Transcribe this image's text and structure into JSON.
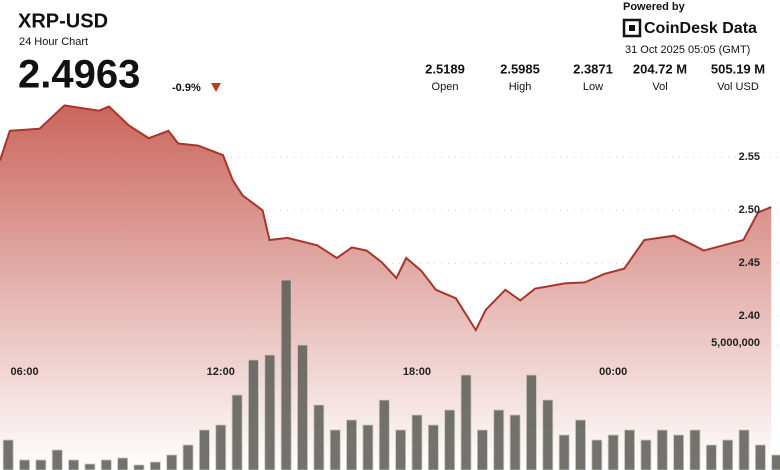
{
  "header": {
    "symbol": "XRP-USD",
    "subtitle": "24 Hour Chart",
    "price": "2.4963",
    "change": "-0.9%",
    "powered_by": "Powered by",
    "brand": "CoinDesk Data",
    "timestamp": "31 Oct 2025 05:05 (GMT)",
    "stats": [
      {
        "value": "2.5189",
        "label": "Open"
      },
      {
        "value": "2.5985",
        "label": "High"
      },
      {
        "value": "2.3871",
        "label": "Low"
      },
      {
        "value": "204.72 M",
        "label": "Vol"
      },
      {
        "value": "505.19 M",
        "label": "Vol USD"
      }
    ]
  },
  "chart_data": {
    "type": "line",
    "xlim": [
      5.25,
      29.1
    ],
    "xticks": [
      {
        "value": 6,
        "label": "06:00"
      },
      {
        "value": 12,
        "label": "12:00"
      },
      {
        "value": 18,
        "label": "18:00"
      },
      {
        "value": 24,
        "label": "00:00"
      }
    ],
    "ylim": [
      2.255,
      2.605
    ],
    "yticks": [
      {
        "value": 2.4,
        "label": "2.40"
      },
      {
        "value": 2.45,
        "label": "2.45"
      },
      {
        "value": 2.5,
        "label": "2.50"
      },
      {
        "value": 2.55,
        "label": "2.55"
      }
    ],
    "y2lim": [
      0,
      9400000
    ],
    "y2ticks": [
      {
        "value": 5000000,
        "label": "5,000,000"
      }
    ],
    "grid": true,
    "series": [
      {
        "type": "line",
        "color": "#a8352c",
        "x": [
          5.25,
          5.55,
          6.46,
          7.22,
          8.28,
          8.58,
          9.19,
          9.8,
          10.4,
          10.7,
          11.31,
          12.07,
          12.37,
          12.67,
          13.28,
          13.49,
          14.04,
          14.95,
          15.55,
          16.01,
          16.46,
          16.92,
          17.37,
          17.67,
          18.13,
          18.58,
          19.19,
          19.8,
          20.1,
          20.7,
          21.16,
          21.61,
          22.52,
          23.13,
          23.73,
          24.34,
          24.95,
          25.86,
          26.46,
          26.77,
          27.37,
          27.98,
          28.43,
          28.83
        ],
        "values": [
          2.547,
          2.575,
          2.577,
          2.599,
          2.594,
          2.598,
          2.58,
          2.568,
          2.575,
          2.563,
          2.561,
          2.552,
          2.528,
          2.514,
          2.5,
          2.472,
          2.474,
          2.467,
          2.455,
          2.465,
          2.462,
          2.451,
          2.436,
          2.455,
          2.443,
          2.425,
          2.417,
          2.387,
          2.406,
          2.425,
          2.415,
          2.426,
          2.431,
          2.432,
          2.44,
          2.445,
          2.472,
          2.476,
          2.467,
          2.462,
          2.467,
          2.472,
          2.498,
          2.503
        ]
      },
      {
        "type": "bar",
        "axis": "y2",
        "color": "#5a5a55",
        "x": [
          5.5,
          6,
          6.5,
          7,
          7.5,
          8,
          8.5,
          9,
          9.5,
          10,
          10.5,
          11,
          11.5,
          12,
          12.5,
          13,
          13.5,
          14,
          14.5,
          15,
          15.5,
          16,
          16.5,
          17,
          17.5,
          18,
          18.5,
          19,
          19.5,
          20,
          20.5,
          21,
          21.5,
          22,
          22.5,
          23,
          23.5,
          24,
          24.5,
          25,
          25.5,
          26,
          26.5,
          27,
          27.5,
          28,
          28.5,
          29
        ],
        "values": [
          1200000,
          400000,
          400000,
          800000,
          400000,
          240000,
          400000,
          480000,
          200000,
          320000,
          600000,
          1000000,
          1600000,
          1800000,
          3000000,
          4400000,
          4600000,
          7600000,
          5000000,
          2600000,
          1600000,
          2000000,
          1800000,
          2800000,
          1600000,
          2200000,
          1800000,
          2400000,
          3800000,
          1600000,
          2400000,
          2200000,
          3800000,
          2800000,
          1400000,
          2000000,
          1200000,
          1400000,
          1600000,
          1200000,
          1600000,
          1400000,
          1600000,
          1000000,
          1200000,
          1600000,
          1000000,
          600000
        ]
      }
    ]
  }
}
